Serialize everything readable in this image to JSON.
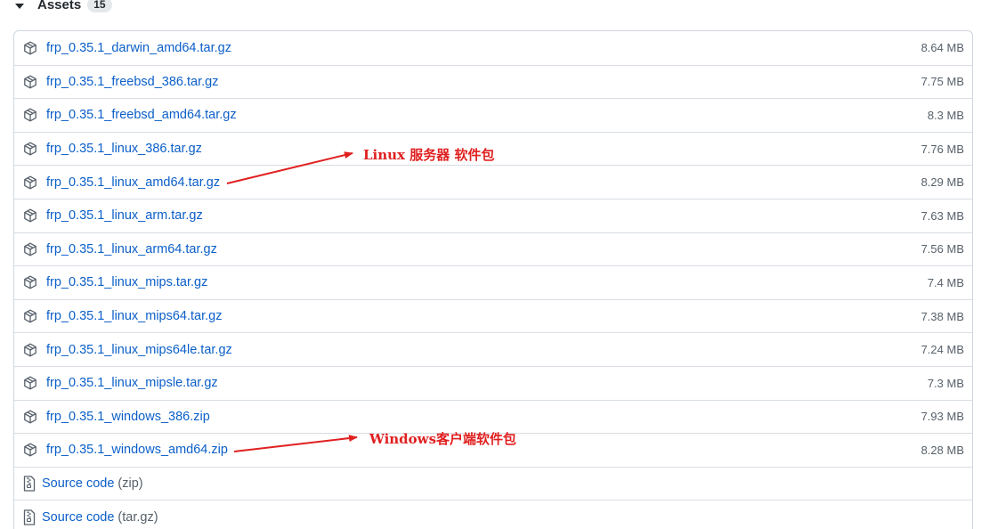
{
  "assets": {
    "title": "Assets",
    "count": "15",
    "files": [
      {
        "name": "frp_0.35.1_darwin_amd64.tar.gz",
        "size": "8.64 MB"
      },
      {
        "name": "frp_0.35.1_freebsd_386.tar.gz",
        "size": "7.75 MB"
      },
      {
        "name": "frp_0.35.1_freebsd_amd64.tar.gz",
        "size": "8.3 MB"
      },
      {
        "name": "frp_0.35.1_linux_386.tar.gz",
        "size": "7.76 MB"
      },
      {
        "name": "frp_0.35.1_linux_amd64.tar.gz",
        "size": "8.29 MB"
      },
      {
        "name": "frp_0.35.1_linux_arm.tar.gz",
        "size": "7.63 MB"
      },
      {
        "name": "frp_0.35.1_linux_arm64.tar.gz",
        "size": "7.56 MB"
      },
      {
        "name": "frp_0.35.1_linux_mips.tar.gz",
        "size": "7.4 MB"
      },
      {
        "name": "frp_0.35.1_linux_mips64.tar.gz",
        "size": "7.38 MB"
      },
      {
        "name": "frp_0.35.1_linux_mips64le.tar.gz",
        "size": "7.24 MB"
      },
      {
        "name": "frp_0.35.1_linux_mipsle.tar.gz",
        "size": "7.3 MB"
      },
      {
        "name": "frp_0.35.1_windows_386.zip",
        "size": "7.93 MB"
      },
      {
        "name": "frp_0.35.1_windows_amd64.zip",
        "size": "8.28 MB"
      }
    ],
    "sources": [
      {
        "label": "Source code",
        "suffix": "(zip)"
      },
      {
        "label": "Source code",
        "suffix": "(tar.gz)"
      }
    ]
  },
  "annotations": {
    "linux_label": "Linux 服务器 软件包",
    "windows_label": "Windows客户端软件包",
    "color": "#e02020"
  },
  "colors": {
    "link": "#0b5fc9",
    "size_text": "#57606a",
    "border": "#d0d7de"
  },
  "icons": {
    "file": "package-icon",
    "source": "file-zip-icon",
    "toggle": "triangle-down-icon"
  }
}
